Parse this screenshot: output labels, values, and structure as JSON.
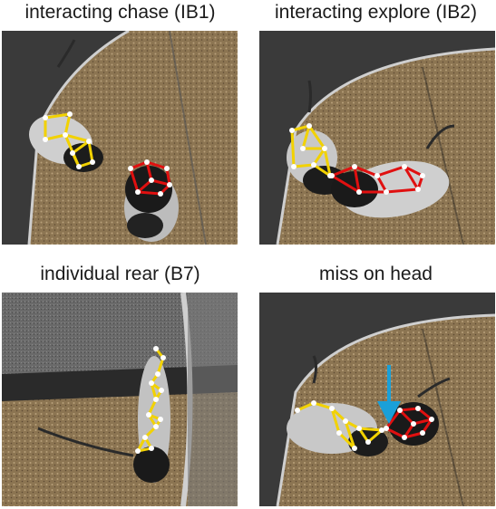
{
  "panels": [
    {
      "caption": "interacting chase (IB1)",
      "mice": [
        "mouse-yellow",
        "mouse-red"
      ]
    },
    {
      "caption": "interacting explore (IB2)",
      "mice": [
        "mouse-yellow",
        "mouse-red"
      ]
    },
    {
      "caption": "individual rear (B7)",
      "mice": [
        "mouse-yellow"
      ]
    },
    {
      "caption": "miss on head",
      "mice": [
        "mouse-yellow",
        "mouse-red"
      ],
      "annotation": "arrow-icon"
    }
  ],
  "colors": {
    "skeleton_a": "#f2d200",
    "skeleton_b": "#e01010",
    "keypoint": "#ffffff",
    "arrow": "#1aa0d8",
    "bedding": "#8c7552",
    "wall": "#3a3a3a"
  }
}
